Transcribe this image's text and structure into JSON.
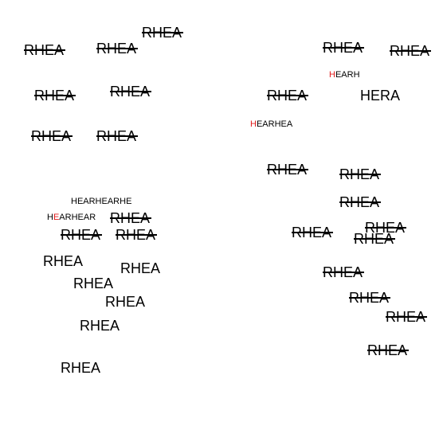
{
  "colors": {
    "text": "#000000",
    "highlight": "#e01a1a",
    "background": "#ffffff"
  },
  "big_words": [
    "RHEA",
    "RHEA",
    "RHEA",
    "RHEA",
    "RHEA",
    "RHEA",
    "RHEA",
    "RHEA",
    "RHEA",
    "RHEA",
    "RHEA",
    "HERA",
    "RHEA",
    "RHEA",
    "RHEA",
    "RHEA",
    "RHEA",
    "RHEA",
    "RHEA",
    "RHEA",
    "RHEA",
    "RHEA",
    "RHEA",
    "RHEA",
    "RHEA",
    "RHEA",
    "RHEA",
    "RHEA",
    "RHEA",
    "RHEA",
    "RHEA",
    "RHEA"
  ],
  "small_labels": [
    {
      "pre": "",
      "hl": "H",
      "post": "EARH"
    },
    {
      "pre": "",
      "hl": "H",
      "post": "EARHEA"
    },
    {
      "pre": "",
      "hl": "",
      "post": "HEARHEARHE"
    },
    {
      "pre": "H",
      "hl": "E",
      "post": "ARHEAR"
    }
  ]
}
